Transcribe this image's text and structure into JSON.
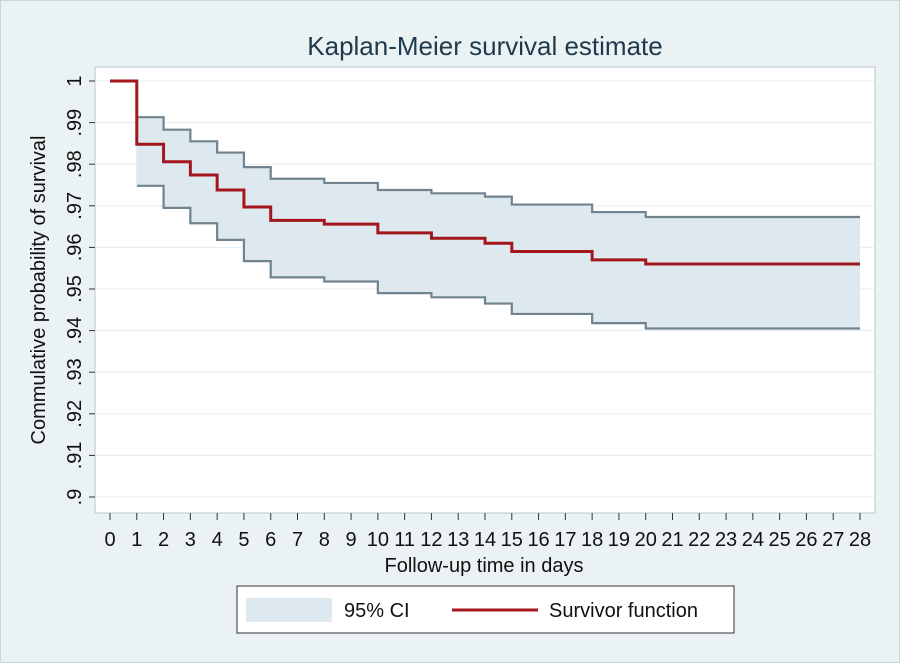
{
  "chart_data": {
    "type": "line",
    "title": "Kaplan-Meier survival estimate",
    "xlabel": "Follow-up time in days",
    "ylabel": "Commulative probability of survival",
    "xlim": [
      0,
      28
    ],
    "ylim": [
      0.9,
      1.0
    ],
    "x_ticks": [
      "0",
      "1",
      "2",
      "3",
      "4",
      "5",
      "6",
      "7",
      "8",
      "9",
      "10",
      "11",
      "12",
      "13",
      "14",
      "15",
      "16",
      "17",
      "18",
      "19",
      "20",
      "21",
      "22",
      "23",
      "24",
      "25",
      "26",
      "27",
      "28"
    ],
    "y_ticks": [
      ".9",
      ".91",
      ".92",
      ".93",
      ".94",
      ".95",
      ".96",
      ".97",
      ".98",
      ".99",
      "1"
    ],
    "y_tick_values": [
      0.9,
      0.91,
      0.92,
      0.93,
      0.94,
      0.95,
      0.96,
      0.97,
      0.98,
      0.99,
      1.0
    ],
    "grid": true,
    "legend_position": "bottom",
    "series": [
      {
        "name": "Survivor function",
        "step": true,
        "color": "#a3171c",
        "x": [
          0,
          1,
          2,
          3,
          4,
          5,
          6,
          8,
          10,
          12,
          14,
          15,
          18,
          20,
          28
        ],
        "y": [
          1.0,
          0.9848,
          0.9806,
          0.9774,
          0.9738,
          0.9697,
          0.9665,
          0.9656,
          0.9635,
          0.9622,
          0.961,
          0.959,
          0.957,
          0.956,
          0.956
        ]
      }
    ],
    "ci_band": {
      "name": "95% CI",
      "fill": "#dde9ee",
      "line_color": "#70838f",
      "x": [
        1,
        2,
        3,
        4,
        5,
        6,
        8,
        10,
        12,
        14,
        15,
        18,
        20,
        28
      ],
      "lower": [
        0.9748,
        0.9695,
        0.9658,
        0.9618,
        0.9567,
        0.9528,
        0.9518,
        0.949,
        0.948,
        0.9465,
        0.944,
        0.9418,
        0.9405,
        0.9405
      ],
      "upper": [
        0.9913,
        0.9883,
        0.9855,
        0.9828,
        0.9793,
        0.9765,
        0.9755,
        0.9738,
        0.973,
        0.9722,
        0.9703,
        0.9685,
        0.9673,
        0.9673
      ]
    }
  },
  "legend": {
    "items": [
      {
        "label": "95% CI"
      },
      {
        "label": "Survivor function"
      }
    ]
  }
}
